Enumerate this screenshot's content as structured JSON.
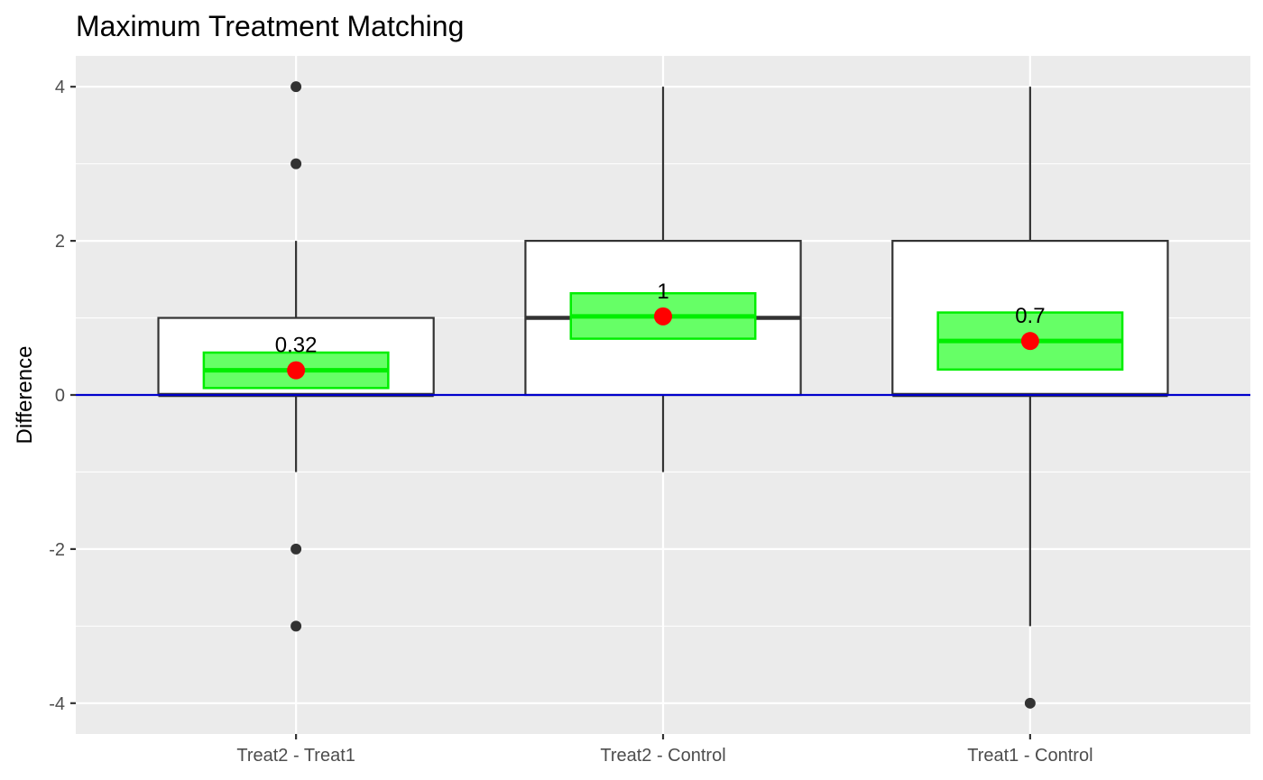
{
  "chart_data": {
    "type": "box",
    "title": "Maximum Treatment Matching",
    "xlabel": "",
    "ylabel": "Difference",
    "ylim": [
      -4.4,
      4.4
    ],
    "yticks": [
      -4,
      -2,
      0,
      2,
      4
    ],
    "grid": true,
    "reference_line": {
      "y": 0,
      "color": "#0000cc"
    },
    "colors": {
      "panel": "#ebebeb",
      "grid": "#ffffff",
      "box_fill": "#ffffff",
      "box_stroke": "#333333",
      "ci_fill": "#66ff66",
      "ci_stroke": "#00ee00",
      "mean_point": "#ff0000",
      "outlier": "#333333"
    },
    "categories": [
      "Treat2 - Treat1",
      "Treat2 - Control",
      "Treat1 - Control"
    ],
    "boxes": [
      {
        "category": "Treat2 - Treat1",
        "whisker_low": -1,
        "q1": 0,
        "median": 0,
        "q3": 1,
        "whisker_high": 2,
        "outliers": [
          4,
          3,
          -2,
          -3
        ],
        "mean": 0.32,
        "ci_low": 0.09,
        "ci_high": 0.55,
        "mean_label": "0.32"
      },
      {
        "category": "Treat2 - Control",
        "whisker_low": -1,
        "q1": 0,
        "median": 1,
        "q3": 2,
        "whisker_high": 4,
        "outliers": [],
        "mean": 1.02,
        "ci_low": 0.73,
        "ci_high": 1.32,
        "mean_label": "1"
      },
      {
        "category": "Treat1 - Control",
        "whisker_low": -3,
        "q1": 0,
        "median": 0,
        "q3": 2,
        "whisker_high": 4,
        "outliers": [
          -4
        ],
        "mean": 0.7,
        "ci_low": 0.33,
        "ci_high": 1.07,
        "mean_label": "0.7"
      }
    ]
  }
}
